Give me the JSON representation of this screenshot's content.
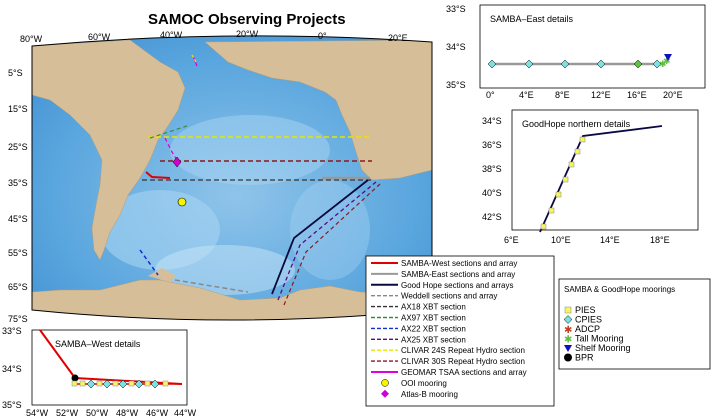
{
  "main_map": {
    "title": "SAMOC Observing Projects",
    "lon_labels": [
      "80°W",
      "60°W",
      "40°W",
      "20°W",
      "0°",
      "20°E"
    ],
    "lat_labels": [
      "5°S",
      "15°S",
      "25°S",
      "35°S",
      "45°S",
      "55°S",
      "65°S",
      "75°S"
    ]
  },
  "legend": {
    "items": [
      {
        "label": "SAMBA-West sections and array",
        "color": "#e00000",
        "style": "solid"
      },
      {
        "label": "SAMBA-East sections and array",
        "color": "#999999",
        "style": "solid"
      },
      {
        "label": "Good Hope sections and arrays",
        "color": "#0a0a40",
        "style": "solid"
      },
      {
        "label": "Weddell sections and array",
        "color": "#888888",
        "style": "dashed"
      },
      {
        "label": "AX18 XBT section",
        "color": "#333333",
        "style": "dashed"
      },
      {
        "label": "AX97 XBT section",
        "color": "#3a8a3a",
        "style": "dashed"
      },
      {
        "label": "AX22 XBT section",
        "color": "#1030d0",
        "style": "dashed"
      },
      {
        "label": "AX25 XBT section",
        "color": "#5a0a80",
        "style": "dashed"
      },
      {
        "label": "CLIVAR 24S Repeat Hydro section",
        "color": "#e6e600",
        "style": "dashed"
      },
      {
        "label": "CLIVAR 30S Repeat Hydro section",
        "color": "#8a1a1a",
        "style": "dashed"
      },
      {
        "label": "GEOMAR TSAA sections and array",
        "color": "#e000e0",
        "style": "solid"
      },
      {
        "label": "OOI mooring",
        "color": "#f5f500",
        "style": "circle"
      },
      {
        "label": "Atlas-B mooring",
        "color": "#d000d0",
        "style": "diamond"
      }
    ]
  },
  "moorings_legend": {
    "title": "SAMBA & GoodHope moorings",
    "items": [
      {
        "label": "PIES",
        "color": "#f5f560",
        "symbol": "square"
      },
      {
        "label": "CPIES",
        "color": "#7ae0e0",
        "symbol": "diamond"
      },
      {
        "label": "ADCP",
        "color": "#c04020",
        "symbol": "star"
      },
      {
        "label": "Tall Mooring",
        "color": "#60c040",
        "symbol": "star"
      },
      {
        "label": "Shelf Mooring",
        "color": "#1010c0",
        "symbol": "triangle-down"
      },
      {
        "label": "BPR",
        "color": "#000000",
        "symbol": "circle"
      }
    ]
  },
  "samba_east": {
    "title": "SAMBA–East details",
    "x_ticks": [
      "0°",
      "4°E",
      "8°E",
      "12°E",
      "16°E",
      "20°E"
    ],
    "y_ticks": [
      "33°S",
      "34°S",
      "35°S"
    ]
  },
  "goodhope": {
    "title": "GoodHope northern details",
    "x_ticks": [
      "6°E",
      "10°E",
      "14°E",
      "18°E"
    ],
    "y_ticks": [
      "34°S",
      "36°S",
      "38°S",
      "40°S",
      "42°S"
    ]
  },
  "samba_west": {
    "title": "SAMBA–West details",
    "x_ticks": [
      "54°W",
      "52°W",
      "50°W",
      "48°W",
      "46°W",
      "44°W"
    ],
    "y_ticks": [
      "33°S",
      "34°S",
      "35°S"
    ]
  }
}
